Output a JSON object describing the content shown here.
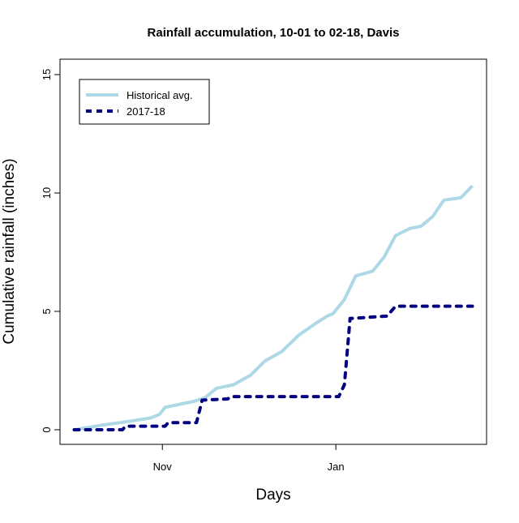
{
  "chart_data": {
    "type": "line",
    "title": "Rainfall accumulation, 10-01 to 02-18, Davis",
    "xlabel": "Days",
    "ylabel": "Cumulative rainfall (inches)",
    "ylim": [
      0,
      15
    ],
    "yticks": [
      "0",
      "5",
      "10",
      "15"
    ],
    "xticks": [
      {
        "label": "Nov",
        "date": "2017-11-01"
      },
      {
        "label": "Jan",
        "date": "2018-01-01"
      }
    ],
    "xlim": [
      "2017-09-26",
      "2018-02-23"
    ],
    "grid": false,
    "legend": "top-left",
    "series": [
      {
        "name": "Historical avg.",
        "color": "#add8e6",
        "style": "solid",
        "x": [
          "2017-10-01",
          "2017-10-11",
          "2017-10-20",
          "2017-10-28",
          "2017-10-31",
          "2017-11-02",
          "2017-11-12",
          "2017-11-16",
          "2017-11-20",
          "2017-11-26",
          "2017-12-02",
          "2017-12-07",
          "2017-12-13",
          "2017-12-19",
          "2017-12-25",
          "2017-12-29",
          "2017-12-31",
          "2018-01-04",
          "2018-01-08",
          "2018-01-14",
          "2018-01-18",
          "2018-01-22",
          "2018-01-27",
          "2018-01-31",
          "2018-02-04",
          "2018-02-08",
          "2018-02-14",
          "2018-02-18"
        ],
        "y": [
          0,
          0.2,
          0.35,
          0.5,
          0.65,
          0.95,
          1.2,
          1.35,
          1.75,
          1.9,
          2.3,
          2.9,
          3.3,
          4.0,
          4.5,
          4.8,
          4.9,
          5.5,
          6.5,
          6.7,
          7.3,
          8.2,
          8.5,
          8.6,
          9.0,
          9.7,
          9.8,
          10.3
        ]
      },
      {
        "name": "2017-18",
        "color": "#000080",
        "style": "dashed",
        "x": [
          "2017-10-01",
          "2017-10-18",
          "2017-10-19",
          "2017-11-02",
          "2017-11-03",
          "2017-11-13",
          "2017-11-15",
          "2017-11-24",
          "2017-11-25",
          "2018-01-02",
          "2018-01-04",
          "2018-01-06",
          "2018-01-19",
          "2018-01-22",
          "2018-02-18"
        ],
        "y": [
          0,
          0,
          0.15,
          0.15,
          0.3,
          0.3,
          1.25,
          1.3,
          1.4,
          1.4,
          1.9,
          4.7,
          4.8,
          5.22,
          5.22
        ]
      }
    ]
  }
}
